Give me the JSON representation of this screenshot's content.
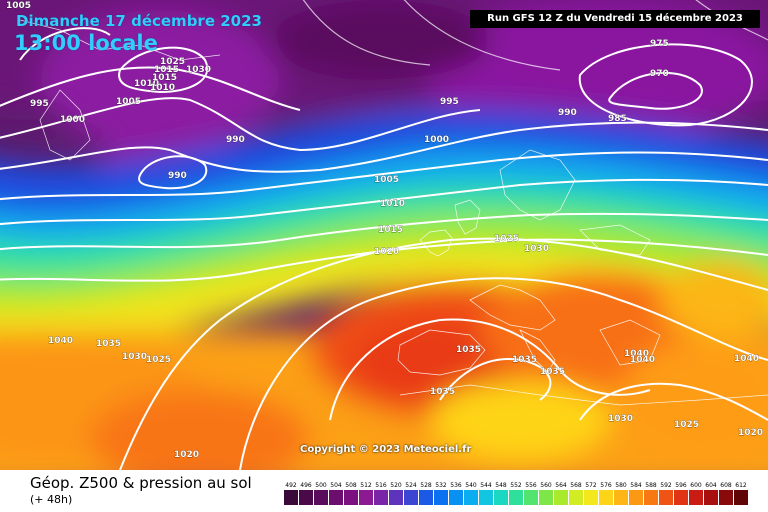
{
  "header": {
    "date_line": "Dimanche 17 décembre 2023",
    "time_line": "13:00 locale",
    "run_info": "Run GFS 12 Z du Vendredi 15 décembre 2023"
  },
  "copyright": "Copyright © 2023 Meteociel.fr",
  "legend": {
    "title": "Géop. Z500 & pression au sol",
    "subtitle": "(+ 48h)",
    "scale_values": [
      "492",
      "496",
      "500",
      "504",
      "508",
      "512",
      "516",
      "520",
      "524",
      "528",
      "532",
      "536",
      "540",
      "544",
      "548",
      "552",
      "556",
      "560",
      "564",
      "568",
      "572",
      "576",
      "580",
      "584",
      "588",
      "592",
      "596",
      "600",
      "604",
      "608",
      "612"
    ],
    "scale_colors": [
      "#3a0a3a",
      "#4a0a4a",
      "#5a0c5c",
      "#6b0e6e",
      "#7c1080",
      "#8c1a92",
      "#7a24a8",
      "#5e34bc",
      "#3c46d2",
      "#1c5ae6",
      "#0a72f0",
      "#0890f2",
      "#0aaef0",
      "#12c6e2",
      "#1ad8c2",
      "#2ee09a",
      "#52e46e",
      "#7ee646",
      "#aaea2c",
      "#d2ec24",
      "#f2e81c",
      "#fed418",
      "#feb616",
      "#fc9814",
      "#f87814",
      "#f05414",
      "#e03414",
      "#c81c14",
      "#a81010",
      "#880a0a",
      "#600606"
    ]
  },
  "isobars": [
    {
      "text": "1005",
      "lat_label": "top-left"
    },
    {
      "text": "995"
    },
    {
      "text": "1000"
    },
    {
      "text": "1005"
    },
    {
      "text": "1010"
    },
    {
      "text": "1015"
    },
    {
      "text": "1025"
    },
    {
      "text": "1030"
    },
    {
      "text": "1015"
    },
    {
      "text": "1010"
    },
    {
      "text": "990"
    },
    {
      "text": "990"
    },
    {
      "text": "995"
    },
    {
      "text": "1000"
    },
    {
      "text": "990"
    },
    {
      "text": "985"
    },
    {
      "text": "975"
    },
    {
      "text": "970"
    },
    {
      "text": "1005"
    },
    {
      "text": "1010"
    },
    {
      "text": "1015"
    },
    {
      "text": "1020"
    },
    {
      "text": "1025"
    },
    {
      "text": "1030"
    },
    {
      "text": "1040"
    },
    {
      "text": "1035"
    },
    {
      "text": "1030"
    },
    {
      "text": "1025"
    },
    {
      "text": "1035"
    },
    {
      "text": "1035"
    },
    {
      "text": "1035"
    },
    {
      "text": "1035"
    },
    {
      "text": "1040"
    },
    {
      "text": "1040"
    },
    {
      "text": "1040"
    },
    {
      "text": "1030"
    },
    {
      "text": "1025"
    },
    {
      "text": "1020"
    },
    {
      "text": "1020"
    }
  ]
}
